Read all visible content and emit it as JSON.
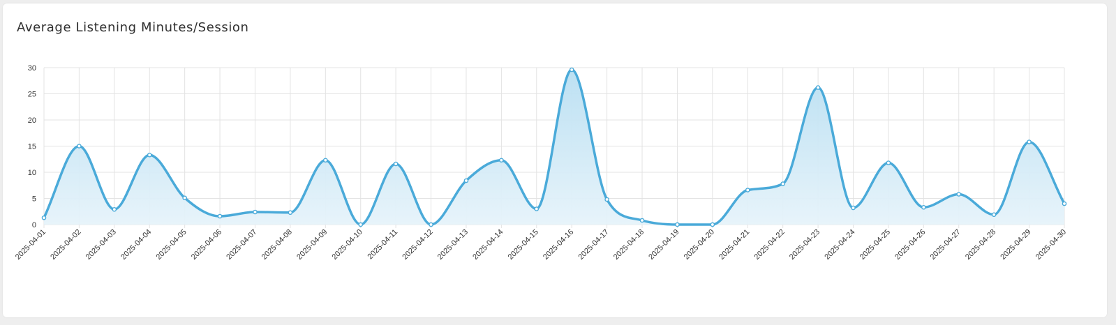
{
  "card": {
    "title": "Average Listening Minutes/Session"
  },
  "colors": {
    "line": "#4aaad9",
    "area_top": "#b9dff2",
    "area_bottom": "#e6f3fa",
    "grid": "#e3e3e3",
    "point_fill": "#ffffff"
  },
  "chart_data": {
    "type": "area",
    "title": "Average Listening Minutes/Session",
    "xlabel": "",
    "ylabel": "",
    "ylim": [
      0,
      30
    ],
    "yticks": [
      0,
      5,
      10,
      15,
      20,
      25,
      30
    ],
    "grid": true,
    "smooth": true,
    "x": [
      "2025-04-01",
      "2025-04-02",
      "2025-04-03",
      "2025-04-04",
      "2025-04-05",
      "2025-04-06",
      "2025-04-07",
      "2025-04-08",
      "2025-04-09",
      "2025-04-10",
      "2025-04-11",
      "2025-04-12",
      "2025-04-13",
      "2025-04-14",
      "2025-04-15",
      "2025-04-16",
      "2025-04-17",
      "2025-04-18",
      "2025-04-19",
      "2025-04-20",
      "2025-04-21",
      "2025-04-22",
      "2025-04-23",
      "2025-04-24",
      "2025-04-25",
      "2025-04-26",
      "2025-04-27",
      "2025-04-28",
      "2025-04-29",
      "2025-04-30"
    ],
    "series": [
      {
        "values": [
          1.3,
          15,
          2.9,
          13.3,
          5.1,
          1.6,
          2.4,
          2.3,
          12.3,
          0,
          11.6,
          0,
          8.4,
          12.3,
          3,
          29.6,
          4.8,
          0.8,
          0,
          0,
          6.6,
          7.8,
          26.2,
          3.2,
          11.8,
          3.3,
          5.8,
          1.9,
          15.8,
          4
        ]
      }
    ]
  }
}
